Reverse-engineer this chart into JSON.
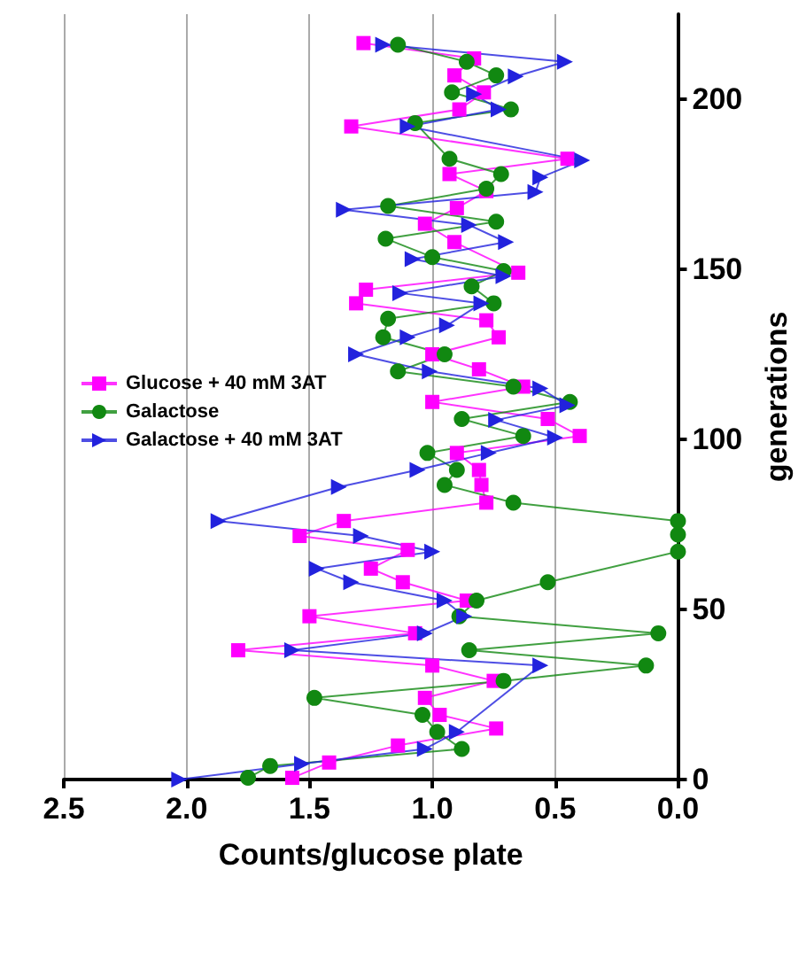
{
  "chart_data": {
    "type": "line",
    "orientation": "horizontal",
    "xlabel": "Counts/glucose plate",
    "ylabel": "generations",
    "xlim": [
      2.5,
      0
    ],
    "xticks": [
      {
        "value": 2.5,
        "label": "2.5"
      },
      {
        "value": 2,
        "label": "2.0"
      },
      {
        "value": 1.5,
        "label": "1.5"
      },
      {
        "value": 1,
        "label": "1.0"
      },
      {
        "value": 0.5,
        "label": "0.5"
      },
      {
        "value": 0,
        "label": "0.0"
      }
    ],
    "ylim": [
      0,
      225
    ],
    "yticks": [
      0,
      50,
      100,
      150,
      200
    ],
    "grid": "x",
    "legend": "left",
    "line_style": "solid",
    "series": [
      {
        "name": "Glucose + 40 mM 3AT",
        "color": "#ff00ff",
        "marker": "square",
        "x": [
          0.5,
          5,
          10,
          15,
          19,
          24,
          29,
          33.5,
          38,
          43,
          48,
          52.6,
          58,
          62,
          67.5,
          71.6,
          76,
          81.4,
          86.6,
          91,
          96,
          101,
          106,
          111,
          115.5,
          120.6,
          125,
          130,
          135,
          140,
          144,
          149,
          158,
          163.4,
          168,
          173,
          178,
          182.5,
          192,
          197,
          202,
          207,
          212,
          216.5
        ],
        "values": [
          1.57,
          1.42,
          1.14,
          0.74,
          0.97,
          1.03,
          0.75,
          1.0,
          1.79,
          1.07,
          1.5,
          0.86,
          1.12,
          1.25,
          1.1,
          1.54,
          1.36,
          0.78,
          0.8,
          0.81,
          0.9,
          0.4,
          0.53,
          1.0,
          0.63,
          0.81,
          1.0,
          0.73,
          0.78,
          1.31,
          1.27,
          0.65,
          0.91,
          1.03,
          0.9,
          0.78,
          0.93,
          0.45,
          1.33,
          0.89,
          0.79,
          0.91,
          0.83,
          1.28
        ]
      },
      {
        "name": "Galactose",
        "color": "#118811",
        "marker": "circle",
        "x": [
          0.5,
          4,
          9,
          14,
          19,
          24,
          29,
          33.5,
          38,
          43,
          48,
          52.6,
          58,
          67,
          72,
          76,
          81.4,
          86.6,
          91,
          96,
          101,
          106,
          111,
          115.5,
          120,
          125,
          130,
          135.5,
          140,
          145,
          149.5,
          153.6,
          159,
          164,
          168.6,
          173.7,
          178,
          182.5,
          193,
          197,
          202,
          207,
          211,
          216
        ],
        "values": [
          1.75,
          1.66,
          0.88,
          0.98,
          1.04,
          1.48,
          0.71,
          0.13,
          0.85,
          0.08,
          0.89,
          0.82,
          0.53,
          0,
          0,
          0,
          0.67,
          0.95,
          0.9,
          1.02,
          0.63,
          0.88,
          0.44,
          0.67,
          1.14,
          0.95,
          1.2,
          1.18,
          0.75,
          0.84,
          0.71,
          1.0,
          1.19,
          0.74,
          1.18,
          0.78,
          0.72,
          0.93,
          1.07,
          0.68,
          0.92,
          0.74,
          0.86,
          1.14
        ]
      },
      {
        "name": "Galactose + 40 mM 3AT",
        "color": "#2222dd",
        "marker": "triangle",
        "x": [
          0,
          4.6,
          9,
          14,
          33.5,
          38,
          43,
          48,
          52.6,
          58,
          62,
          67,
          71.6,
          76,
          86,
          91,
          96,
          100.5,
          105.7,
          110,
          115,
          120,
          125,
          130,
          133.5,
          140,
          143,
          148,
          153,
          158,
          163,
          167.5,
          172.7,
          177,
          182,
          192,
          197,
          201.5,
          206.7,
          211,
          216
        ],
        "values": [
          2.03,
          1.53,
          1.03,
          0.9,
          0.56,
          1.57,
          1.03,
          0.87,
          0.95,
          1.33,
          1.47,
          1.0,
          1.29,
          1.87,
          1.38,
          1.06,
          0.77,
          0.5,
          0.74,
          0.45,
          0.56,
          1.01,
          1.31,
          1.1,
          0.94,
          0.8,
          1.13,
          0.71,
          1.08,
          0.7,
          0.85,
          1.36,
          0.58,
          0.56,
          0.39,
          1.1,
          0.73,
          0.83,
          0.66,
          0.46,
          1.2
        ]
      }
    ]
  }
}
